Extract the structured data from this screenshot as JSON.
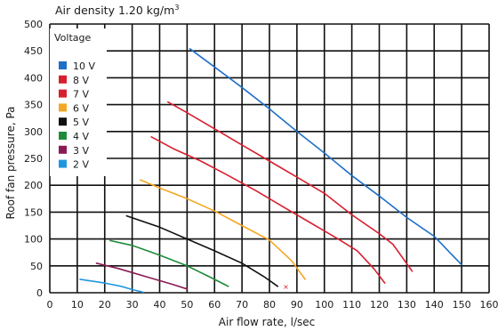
{
  "header": {
    "title_main": "Air density 1.20 kg/m",
    "title_sup": "3"
  },
  "chart_data": {
    "type": "line",
    "xlabel": "Air flow rate, l/sec",
    "ylabel": "Roof fan pressure, Pa",
    "xlim": [
      0,
      160
    ],
    "ylim": [
      0,
      500
    ],
    "xticks": [
      0,
      10,
      20,
      30,
      40,
      50,
      60,
      70,
      80,
      90,
      100,
      110,
      120,
      130,
      140,
      150,
      160
    ],
    "yticks": [
      0,
      50,
      100,
      150,
      200,
      250,
      300,
      350,
      400,
      450,
      500
    ],
    "grid": true,
    "legend": {
      "title": "Voltage",
      "placement": "top-left"
    },
    "series": [
      {
        "name": "10 V",
        "color": "#1f6fc7",
        "points": [
          [
            51,
            454
          ],
          [
            60,
            420
          ],
          [
            70,
            382
          ],
          [
            80,
            342
          ],
          [
            90,
            300
          ],
          [
            100,
            260
          ],
          [
            110,
            218
          ],
          [
            120,
            180
          ],
          [
            130,
            140
          ],
          [
            140,
            105
          ],
          [
            150,
            52
          ]
        ]
      },
      {
        "name": "8 V",
        "color": "#d81f2f",
        "points": [
          [
            43,
            355
          ],
          [
            50,
            335
          ],
          [
            60,
            305
          ],
          [
            70,
            275
          ],
          [
            80,
            245
          ],
          [
            90,
            215
          ],
          [
            100,
            185
          ],
          [
            110,
            145
          ],
          [
            120,
            110
          ],
          [
            125,
            90
          ],
          [
            132,
            40
          ]
        ]
      },
      {
        "name": "7 V",
        "color": "#d81f2f",
        "points": [
          [
            37,
            290
          ],
          [
            45,
            268
          ],
          [
            55,
            245
          ],
          [
            65,
            218
          ],
          [
            75,
            190
          ],
          [
            85,
            160
          ],
          [
            95,
            130
          ],
          [
            105,
            100
          ],
          [
            112,
            78
          ],
          [
            118,
            45
          ],
          [
            122,
            18
          ]
        ]
      },
      {
        "name": "6 V",
        "color": "#f5a623",
        "points": [
          [
            33,
            210
          ],
          [
            40,
            195
          ],
          [
            50,
            175
          ],
          [
            60,
            152
          ],
          [
            70,
            125
          ],
          [
            80,
            98
          ],
          [
            88,
            60
          ],
          [
            93,
            25
          ]
        ]
      },
      {
        "name": "5 V",
        "color": "#111111",
        "points": [
          [
            28,
            143
          ],
          [
            40,
            122
          ],
          [
            50,
            100
          ],
          [
            60,
            78
          ],
          [
            70,
            55
          ],
          [
            78,
            30
          ],
          [
            83,
            12
          ]
        ]
      },
      {
        "name": "4 V",
        "color": "#1e8b3a",
        "points": [
          [
            22,
            97
          ],
          [
            30,
            88
          ],
          [
            40,
            70
          ],
          [
            50,
            50
          ],
          [
            58,
            30
          ],
          [
            65,
            12
          ]
        ]
      },
      {
        "name": "3 V",
        "color": "#8a1a55",
        "points": [
          [
            17,
            55
          ],
          [
            25,
            45
          ],
          [
            35,
            30
          ],
          [
            45,
            15
          ],
          [
            50,
            7
          ]
        ]
      },
      {
        "name": "2 V",
        "color": "#2196e0",
        "points": [
          [
            11,
            25
          ],
          [
            20,
            18
          ],
          [
            26,
            12
          ],
          [
            30,
            6
          ],
          [
            34,
            1
          ]
        ]
      }
    ],
    "annotations": [
      {
        "text": "×",
        "x": 86,
        "y": 12,
        "color": "#d81f2f"
      }
    ]
  }
}
